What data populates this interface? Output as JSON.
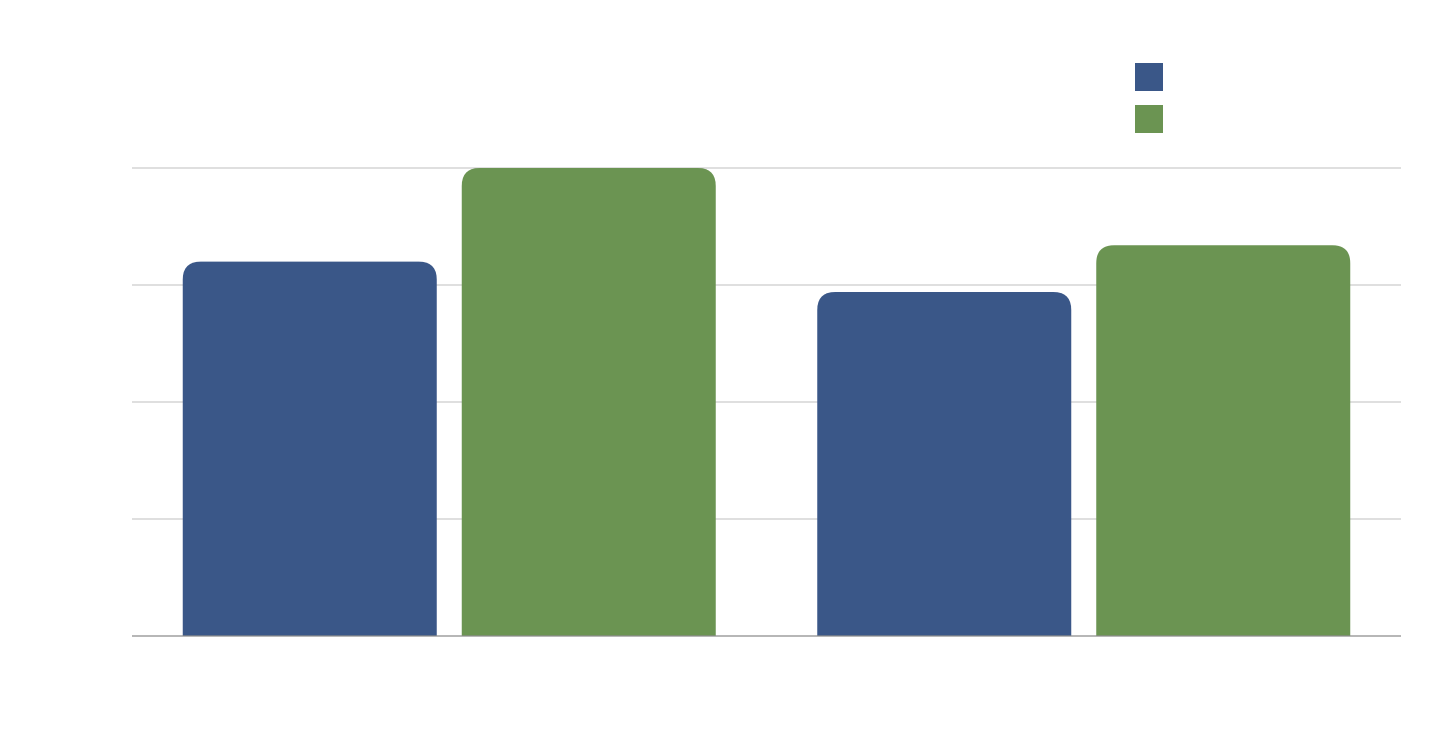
{
  "chart_data": {
    "type": "bar",
    "categories": [
      "",
      ""
    ],
    "series": [
      {
        "color": "#3a5788",
        "values": [
          3.2,
          2.94
        ]
      },
      {
        "color": "#6b9452",
        "values": [
          4.0,
          3.34
        ]
      }
    ],
    "ylim": [
      0,
      4
    ],
    "grid": true,
    "legend_placement": "top-right",
    "title": "",
    "xlabel": "",
    "ylabel": ""
  }
}
